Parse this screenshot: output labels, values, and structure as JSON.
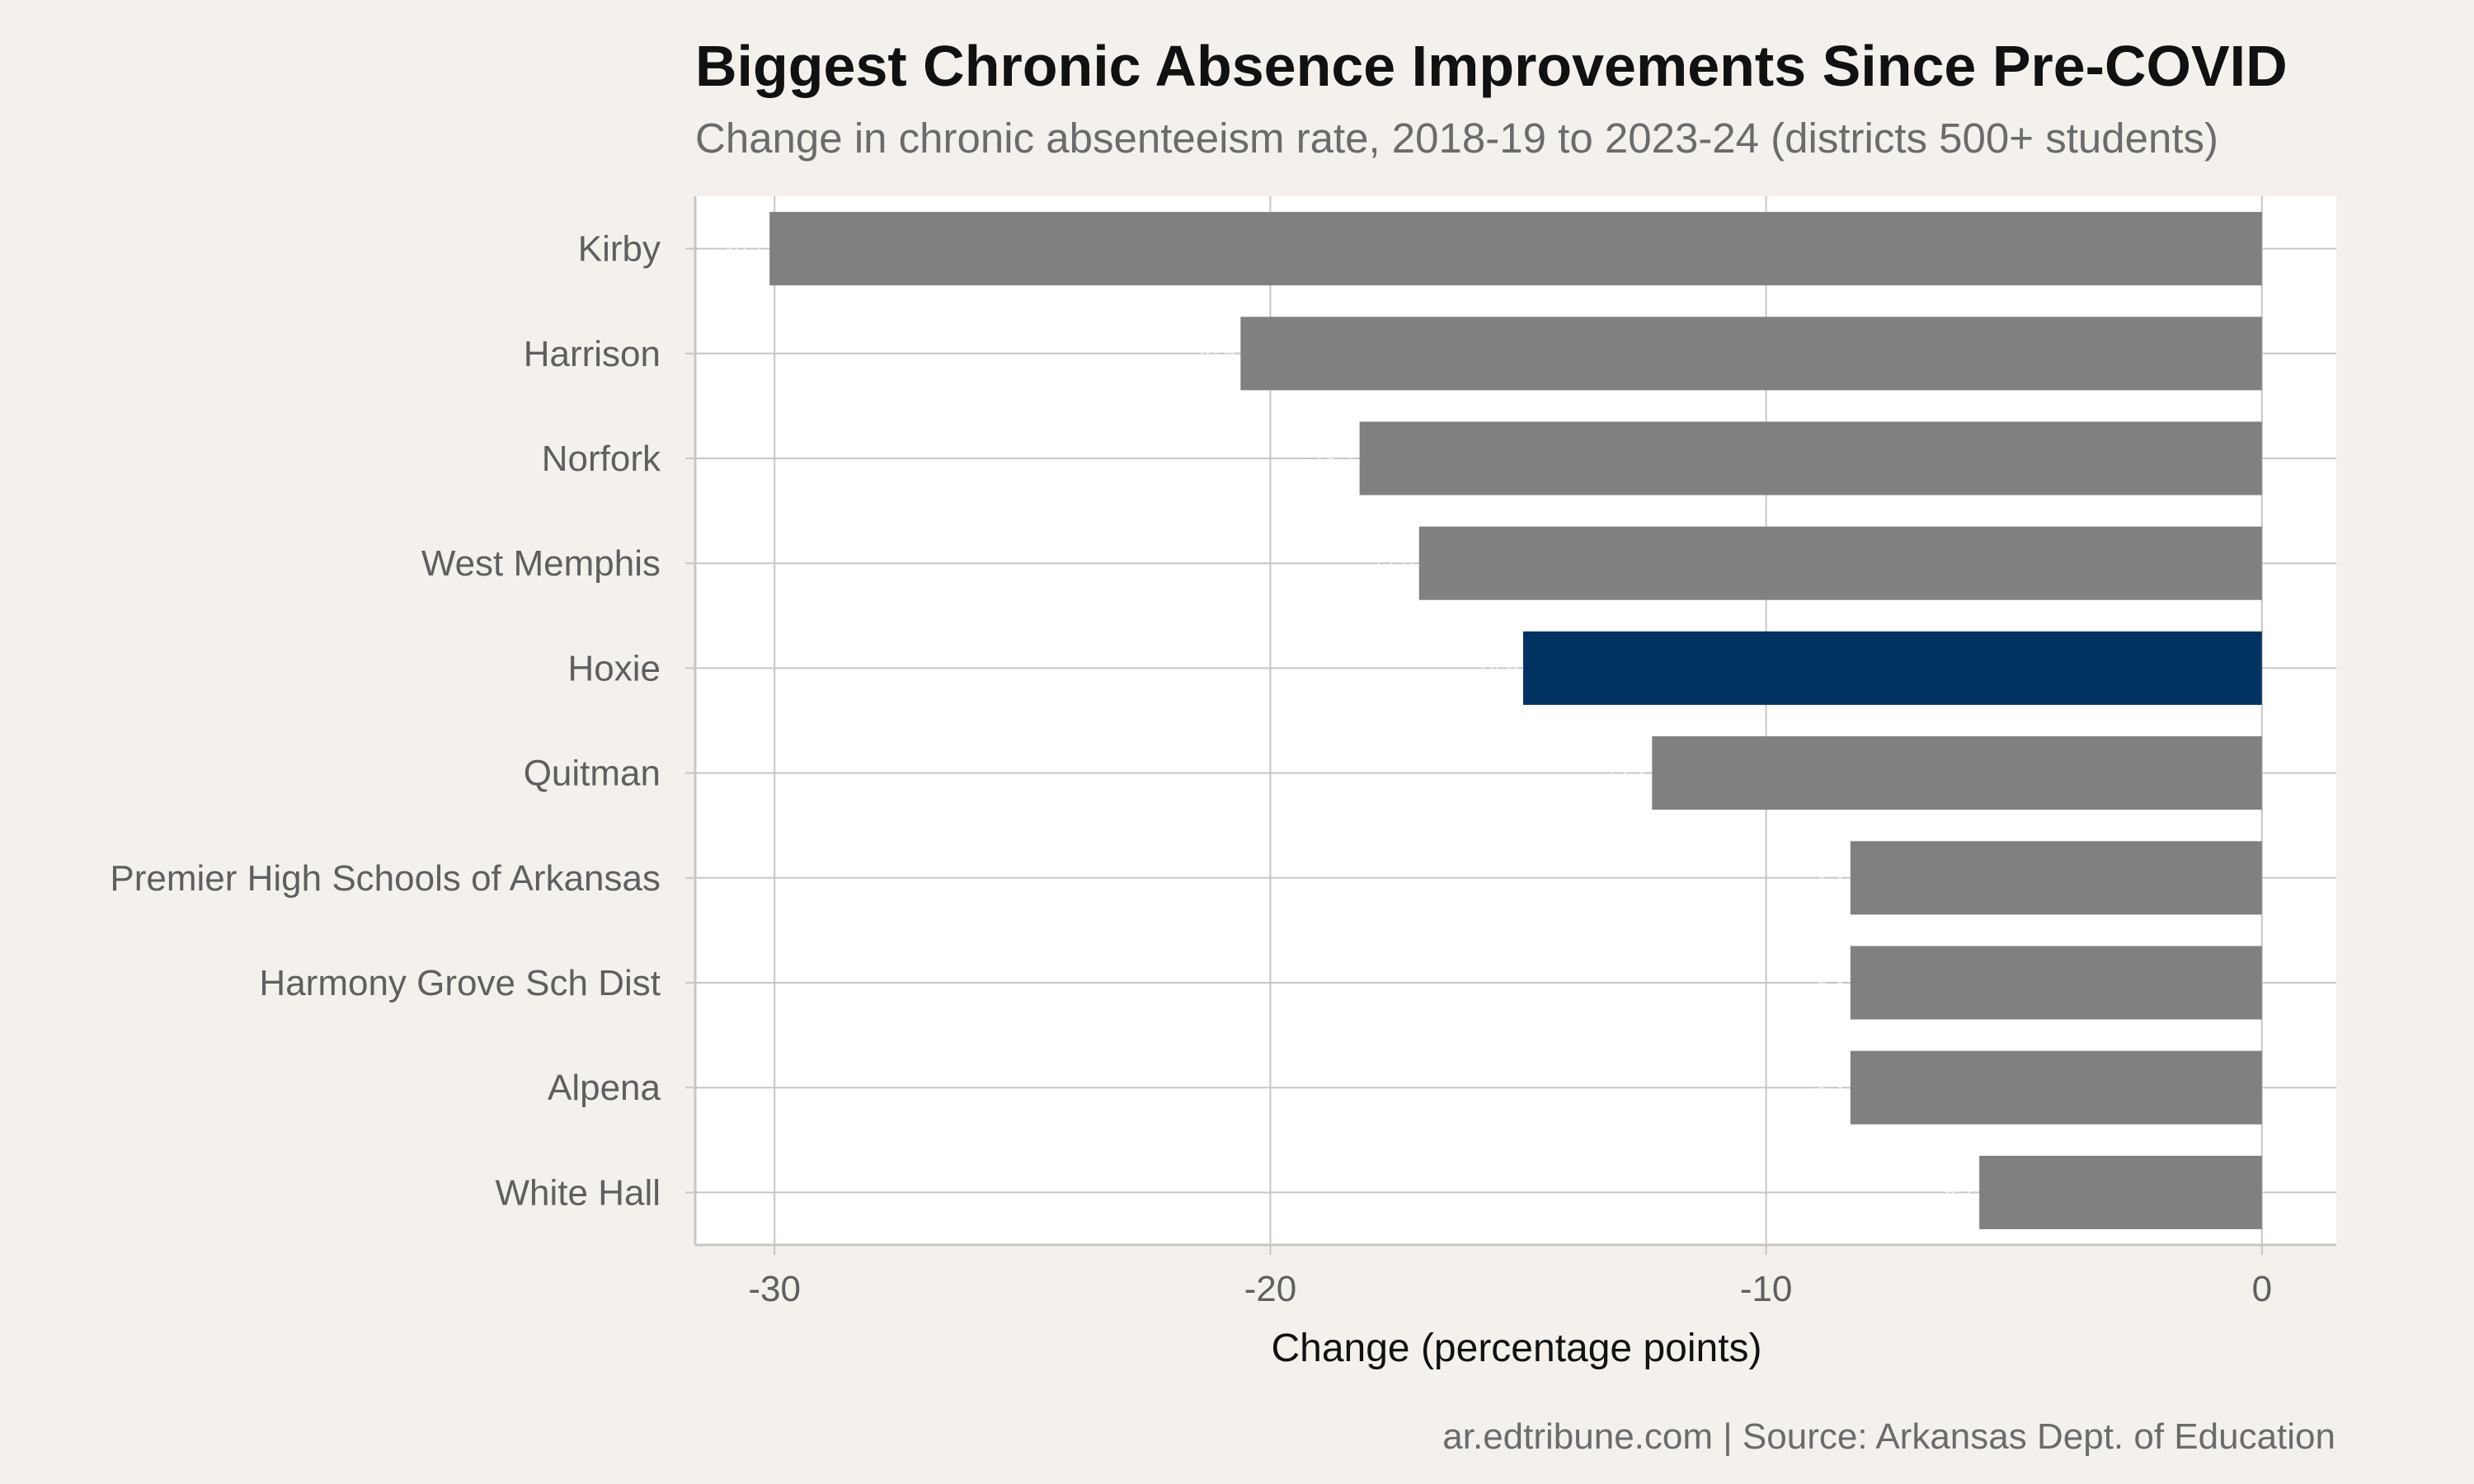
{
  "title": "Biggest Chronic Absence Improvements Since Pre-COVID",
  "subtitle": "Change in chronic absenteeism rate, 2018-19 to 2023-24 (districts 500+ students)",
  "caption": "ar.edtribune.com | Source: Arkansas Dept. of Education",
  "colors": {
    "background": "#f4f1ec",
    "panel": "#ffffff",
    "bar_default": "#808080",
    "bar_highlight": "#003262",
    "grid": "#c8c6c0"
  },
  "chart_data": {
    "type": "bar",
    "orientation": "horizontal",
    "categories": [
      "Kirby",
      "Harrison",
      "Norfork",
      "West Memphis",
      "Hoxie",
      "Quitman",
      "Premier High Schools of Arkansas",
      "Harmony Grove Sch Dist",
      "Alpena",
      "White Hall"
    ],
    "values": [
      -30.1,
      -20.6,
      -18.2,
      -17.0,
      -14.9,
      -12.3,
      -8.3,
      -8.3,
      -8.3,
      -5.7
    ],
    "highlight": "Hoxie",
    "xlabel": "Change (percentage points)",
    "ylabel": "",
    "xlim": [
      -31.6,
      1.5
    ],
    "xticks": [
      -30,
      -20,
      -10,
      0
    ],
    "xtick_labels": [
      "-30",
      "-20",
      "-10",
      "0"
    ],
    "grid": true
  }
}
